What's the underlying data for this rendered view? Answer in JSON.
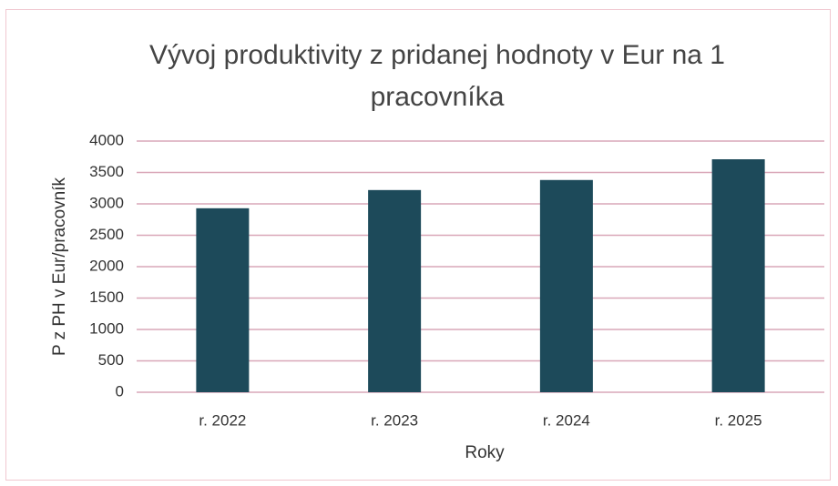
{
  "chart_data": {
    "type": "bar",
    "title": "Vývoj produktivity z pridanej hodnoty v Eur na 1 pracovníka",
    "x_label": "Roky",
    "y_label": "P z PH v Eur/pracovník",
    "categories": [
      "r. 2022",
      "r. 2023",
      "r. 2024",
      "r. 2025"
    ],
    "values": [
      2930,
      3220,
      3380,
      3710
    ],
    "color": "#1d4a5a",
    "ylim": [
      0,
      4000
    ],
    "yticks": [
      0,
      500,
      1000,
      1500,
      2000,
      2500,
      3000,
      3500,
      4000
    ],
    "grid": true
  }
}
